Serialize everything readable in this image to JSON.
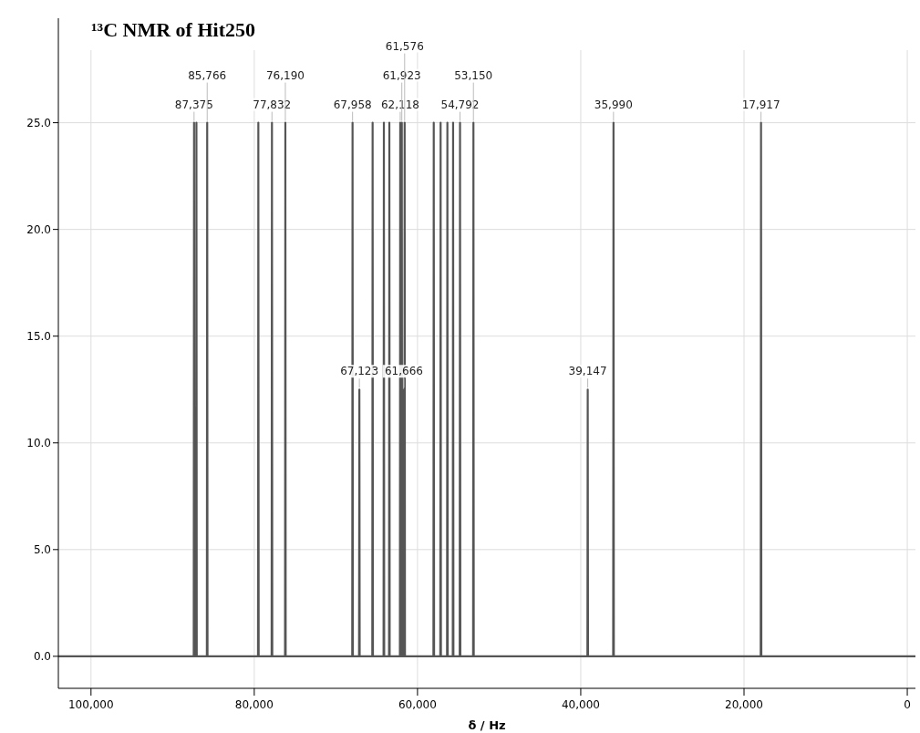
{
  "chart_data": {
    "type": "line",
    "title": "¹³C NMR of Hit250",
    "xlabel": "δ / Hz",
    "xlim": [
      104000,
      -1000
    ],
    "ylim": [
      -1.5,
      28.4
    ],
    "xticks": [
      {
        "value": 100000,
        "label": "100,000"
      },
      {
        "value": 80000,
        "label": "80,000"
      },
      {
        "value": 60000,
        "label": "60,000"
      },
      {
        "value": 40000,
        "label": "40,000"
      },
      {
        "value": 20000,
        "label": "20,000"
      },
      0
    ],
    "yticks": [
      {
        "value": 0,
        "label": "0.0"
      },
      {
        "value": 5,
        "label": "5.0"
      },
      {
        "value": 10,
        "label": "10.0"
      },
      {
        "value": 15,
        "label": "15.0"
      },
      {
        "value": 20,
        "label": "20.0"
      },
      {
        "value": 25,
        "label": "25.0"
      }
    ],
    "grid": true,
    "marker": "none",
    "line_style": "solid",
    "series": [
      {
        "color": "#555555",
        "x": [
          104000,
          87415,
          87375,
          87335,
          87124,
          87084,
          87044,
          85806,
          85766,
          85726,
          79540,
          79500,
          79460,
          77872,
          77832,
          77792,
          76230,
          76190,
          76150,
          67998,
          67958,
          67918,
          67163,
          67123,
          67083,
          65540,
          65500,
          65460,
          64160,
          64120,
          64080,
          63490,
          63450,
          63410,
          62158,
          62118,
          62078,
          61963,
          61923,
          61883,
          61706,
          61666,
          61626,
          61616,
          61576,
          61536,
          58050,
          58010,
          57970,
          57210,
          57170,
          57130,
          56380,
          56340,
          56300,
          55680,
          55640,
          55600,
          54832,
          54792,
          54752,
          53190,
          53150,
          53110,
          39187,
          39147,
          39107,
          36030,
          35990,
          35950,
          17957,
          17917,
          17877,
          -1000
        ],
        "values": [
          0,
          0,
          25,
          0,
          0,
          25,
          0,
          0,
          25,
          0,
          0,
          25,
          0,
          0,
          25,
          0,
          0,
          25,
          0,
          0,
          25,
          0,
          0,
          12.5,
          0,
          0,
          25,
          0,
          0,
          25,
          0,
          0,
          25,
          0,
          0,
          25,
          0,
          0,
          25,
          0,
          0,
          12.5,
          0,
          0,
          25,
          0,
          0,
          25,
          0,
          0,
          25,
          0,
          0,
          25,
          0,
          0,
          25,
          0,
          0,
          25,
          0,
          0,
          25,
          0,
          0,
          12.5,
          0,
          0,
          25,
          0,
          0,
          25,
          0,
          0
        ]
      }
    ],
    "annotations": [
      {
        "text": "87,375",
        "x": 87375,
        "y": 25
      },
      {
        "text": "85,766",
        "x": 85766,
        "y": 25
      },
      {
        "text": "77,832",
        "x": 77832,
        "y": 25
      },
      {
        "text": "76,190",
        "x": 76190,
        "y": 25
      },
      {
        "text": "67,958",
        "x": 67958,
        "y": 25
      },
      {
        "text": "67,123",
        "x": 67123,
        "y": 12.5
      },
      {
        "text": "62,118",
        "x": 62118,
        "y": 25
      },
      {
        "text": "61,923",
        "x": 61923,
        "y": 25
      },
      {
        "text": "61,666",
        "x": 61666,
        "y": 12.5
      },
      {
        "text": "61,576",
        "x": 61576,
        "y": 25
      },
      {
        "text": "54,792",
        "x": 54792,
        "y": 25
      },
      {
        "text": "53,150",
        "x": 53150,
        "y": 25
      },
      {
        "text": "39,147",
        "x": 39147,
        "y": 12.5
      },
      {
        "text": "35,990",
        "x": 35990,
        "y": 25
      },
      {
        "text": "17,917",
        "x": 17917,
        "y": 25
      }
    ]
  }
}
